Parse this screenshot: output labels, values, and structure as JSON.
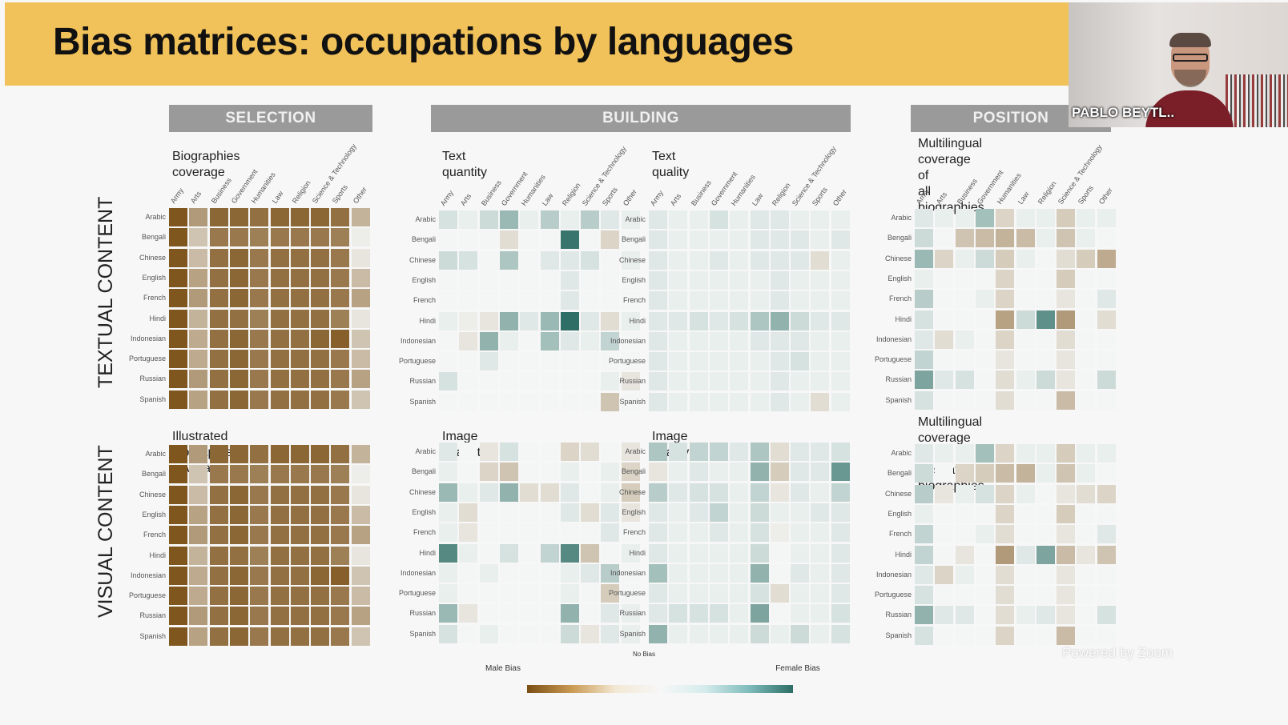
{
  "slide": {
    "title": "Bias matrices: occupations by languages",
    "sections": [
      "SELECTION",
      "BUILDING",
      "POSITION"
    ],
    "row_titles": [
      "TEXTUAL CONTENT",
      "VISUAL CONTENT"
    ],
    "colors": {
      "banner": "#f2c25a",
      "male_bias": "#7a4e14",
      "no_bias": "#f7f7f7",
      "female_bias": "#2e6e66",
      "header_gray": "#9a9a9a"
    }
  },
  "chart_data": {
    "type": "heatmap",
    "columns": [
      "Army",
      "Arts",
      "Business",
      "Government",
      "Humanities",
      "Law",
      "Religion",
      "Science & Technology",
      "Sports",
      "Other"
    ],
    "rows": [
      "Arabic",
      "Bengali",
      "Chinese",
      "English",
      "French",
      "Hindi",
      "Indonesian",
      "Portuguese",
      "Russian",
      "Spanish"
    ],
    "value_range": [
      -1,
      1
    ],
    "panels": [
      {
        "title": "Biographies coverage",
        "grid": [
          [
            -0.95,
            -0.55,
            -0.85,
            -0.85,
            -0.8,
            -0.85,
            -0.85,
            -0.85,
            -0.8,
            -0.4
          ],
          [
            -0.95,
            -0.3,
            -0.75,
            -0.75,
            -0.7,
            -0.75,
            -0.75,
            -0.75,
            -0.7,
            -0.05
          ],
          [
            -0.95,
            -0.35,
            -0.8,
            -0.85,
            -0.75,
            -0.8,
            -0.8,
            -0.8,
            -0.75,
            -0.1
          ],
          [
            -0.95,
            -0.5,
            -0.8,
            -0.85,
            -0.75,
            -0.8,
            -0.8,
            -0.8,
            -0.75,
            -0.35
          ],
          [
            -0.95,
            -0.55,
            -0.8,
            -0.85,
            -0.75,
            -0.8,
            -0.8,
            -0.8,
            -0.75,
            -0.5
          ],
          [
            -0.95,
            -0.4,
            -0.8,
            -0.8,
            -0.7,
            -0.8,
            -0.8,
            -0.8,
            -0.7,
            -0.1
          ],
          [
            -0.95,
            -0.45,
            -0.8,
            -0.85,
            -0.75,
            -0.8,
            -0.8,
            -0.85,
            -0.9,
            -0.3
          ],
          [
            -0.95,
            -0.45,
            -0.8,
            -0.85,
            -0.75,
            -0.8,
            -0.8,
            -0.8,
            -0.75,
            -0.35
          ],
          [
            -0.95,
            -0.55,
            -0.8,
            -0.85,
            -0.75,
            -0.8,
            -0.8,
            -0.8,
            -0.75,
            -0.5
          ],
          [
            -0.95,
            -0.5,
            -0.8,
            -0.85,
            -0.75,
            -0.8,
            -0.8,
            -0.8,
            -0.75,
            -0.3
          ]
        ]
      },
      {
        "title": "Text quantity",
        "grid": [
          [
            0.15,
            0.05,
            0.2,
            0.45,
            0.05,
            0.3,
            0.05,
            0.3,
            0.1,
            0.05
          ],
          [
            0.0,
            0.0,
            0.0,
            -0.15,
            0.0,
            0.0,
            0.95,
            0.0,
            -0.2,
            0.0
          ],
          [
            0.2,
            0.15,
            0.0,
            0.35,
            0.0,
            0.1,
            0.1,
            0.15,
            0.0,
            0.05
          ],
          [
            0.0,
            0.0,
            0.0,
            0.0,
            0.0,
            0.0,
            0.1,
            0.0,
            0.0,
            0.0
          ],
          [
            0.0,
            0.0,
            0.0,
            0.0,
            0.0,
            0.0,
            0.1,
            0.0,
            0.0,
            0.0
          ],
          [
            0.05,
            -0.05,
            -0.1,
            0.5,
            0.1,
            0.45,
            1.0,
            0.1,
            -0.15,
            0.05
          ],
          [
            0.0,
            -0.1,
            0.5,
            0.05,
            0.0,
            0.4,
            0.1,
            0.05,
            0.25,
            0.0
          ],
          [
            0.0,
            0.0,
            0.1,
            0.0,
            0.0,
            0.0,
            0.0,
            0.0,
            0.0,
            0.0
          ],
          [
            0.15,
            0.0,
            0.0,
            0.0,
            0.0,
            0.0,
            0.0,
            0.0,
            0.05,
            -0.1
          ],
          [
            0.0,
            0.0,
            0.0,
            0.0,
            0.0,
            0.0,
            0.0,
            0.0,
            -0.3,
            0.0
          ]
        ]
      },
      {
        "title": "Text quality",
        "grid": [
          [
            0.1,
            0.05,
            0.05,
            0.15,
            0.05,
            0.1,
            0.1,
            0.05,
            0.05,
            0.05
          ],
          [
            0.1,
            0.05,
            0.05,
            0.05,
            0.05,
            0.1,
            0.1,
            0.1,
            0.05,
            0.1
          ],
          [
            0.1,
            0.05,
            0.05,
            0.1,
            0.05,
            0.1,
            0.1,
            0.1,
            -0.15,
            0.05
          ],
          [
            0.1,
            0.05,
            0.05,
            0.05,
            0.05,
            0.05,
            0.1,
            0.05,
            0.05,
            0.05
          ],
          [
            0.1,
            0.05,
            0.05,
            0.05,
            0.05,
            0.05,
            0.1,
            0.05,
            0.05,
            0.05
          ],
          [
            0.1,
            0.1,
            0.15,
            0.1,
            0.15,
            0.35,
            0.5,
            0.2,
            0.1,
            0.1
          ],
          [
            0.1,
            0.05,
            0.05,
            0.05,
            0.05,
            0.1,
            0.1,
            0.1,
            0.05,
            0.05
          ],
          [
            0.1,
            0.05,
            0.05,
            0.05,
            0.05,
            0.05,
            0.1,
            0.15,
            0.05,
            0.05
          ],
          [
            0.1,
            0.05,
            0.05,
            0.05,
            0.05,
            0.05,
            0.1,
            0.05,
            0.05,
            0.05
          ],
          [
            0.1,
            0.05,
            0.05,
            0.05,
            0.05,
            0.05,
            0.1,
            0.05,
            -0.15,
            0.05
          ]
        ]
      },
      {
        "title": "Multilingual coverage of\nall biographies",
        "grid": [
          [
            0.1,
            0.05,
            0.05,
            0.4,
            -0.2,
            0.05,
            0.05,
            -0.25,
            0.05,
            0.05
          ],
          [
            0.2,
            0.0,
            -0.3,
            -0.35,
            -0.4,
            -0.35,
            0.05,
            -0.3,
            0.05,
            0.0
          ],
          [
            0.45,
            -0.2,
            0.05,
            0.2,
            -0.25,
            0.05,
            0.0,
            -0.15,
            -0.25,
            -0.45
          ],
          [
            0.05,
            0.0,
            0.0,
            0.0,
            -0.2,
            0.0,
            0.0,
            -0.25,
            0.0,
            0.0
          ],
          [
            0.3,
            0.0,
            0.0,
            0.05,
            -0.2,
            0.0,
            0.0,
            -0.1,
            0.0,
            0.1
          ],
          [
            0.15,
            0.0,
            0.0,
            0.0,
            -0.5,
            0.2,
            0.75,
            -0.55,
            0.0,
            -0.15
          ],
          [
            0.1,
            -0.15,
            0.05,
            0.0,
            -0.2,
            0.0,
            0.0,
            -0.15,
            0.0,
            0.0
          ],
          [
            0.25,
            0.0,
            0.0,
            0.0,
            -0.1,
            0.0,
            0.0,
            -0.1,
            0.0,
            0.0
          ],
          [
            0.6,
            0.1,
            0.15,
            0.0,
            -0.15,
            0.05,
            0.2,
            -0.1,
            0.0,
            0.2
          ],
          [
            0.15,
            0.0,
            0.0,
            0.0,
            -0.15,
            0.0,
            0.0,
            -0.35,
            0.0,
            0.0
          ]
        ]
      },
      {
        "title": "Illustrated biographies coverage",
        "grid": [
          [
            -0.95,
            -0.55,
            -0.85,
            -0.85,
            -0.8,
            -0.85,
            -0.85,
            -0.85,
            -0.8,
            -0.4
          ],
          [
            -0.95,
            -0.3,
            -0.75,
            -0.75,
            -0.7,
            -0.75,
            -0.75,
            -0.75,
            -0.7,
            -0.05
          ],
          [
            -0.95,
            -0.35,
            -0.8,
            -0.85,
            -0.75,
            -0.8,
            -0.8,
            -0.8,
            -0.75,
            -0.1
          ],
          [
            -0.95,
            -0.5,
            -0.8,
            -0.85,
            -0.75,
            -0.8,
            -0.8,
            -0.8,
            -0.75,
            -0.35
          ],
          [
            -0.95,
            -0.55,
            -0.8,
            -0.85,
            -0.75,
            -0.8,
            -0.8,
            -0.8,
            -0.75,
            -0.5
          ],
          [
            -0.95,
            -0.4,
            -0.8,
            -0.8,
            -0.7,
            -0.8,
            -0.8,
            -0.8,
            -0.7,
            -0.1
          ],
          [
            -0.95,
            -0.45,
            -0.8,
            -0.85,
            -0.75,
            -0.8,
            -0.8,
            -0.85,
            -0.9,
            -0.3
          ],
          [
            -0.95,
            -0.45,
            -0.8,
            -0.85,
            -0.75,
            -0.8,
            -0.8,
            -0.8,
            -0.75,
            -0.35
          ],
          [
            -0.95,
            -0.55,
            -0.8,
            -0.85,
            -0.75,
            -0.8,
            -0.8,
            -0.8,
            -0.75,
            -0.5
          ],
          [
            -0.95,
            -0.5,
            -0.8,
            -0.85,
            -0.75,
            -0.8,
            -0.8,
            -0.8,
            -0.75,
            -0.3
          ]
        ]
      },
      {
        "title": "Image quantity",
        "grid": [
          [
            0.1,
            0.0,
            -0.1,
            0.15,
            0.0,
            0.0,
            -0.2,
            -0.15,
            0.0,
            -0.1
          ],
          [
            0.05,
            0.0,
            -0.2,
            -0.3,
            0.0,
            0.0,
            0.05,
            0.0,
            0.05,
            -0.2
          ],
          [
            0.45,
            0.05,
            0.1,
            0.5,
            -0.15,
            -0.15,
            0.1,
            0.0,
            0.05,
            -0.25
          ],
          [
            0.05,
            -0.15,
            0.0,
            0.0,
            0.0,
            0.0,
            0.1,
            -0.15,
            0.1,
            -0.1
          ],
          [
            0.05,
            -0.1,
            0.0,
            0.0,
            0.0,
            0.0,
            0.0,
            0.0,
            0.1,
            0.0
          ],
          [
            0.8,
            0.05,
            0.0,
            0.15,
            0.0,
            0.25,
            0.8,
            -0.3,
            0.0,
            0.05
          ],
          [
            0.05,
            0.0,
            0.05,
            0.0,
            0.0,
            0.0,
            0.05,
            0.1,
            0.3,
            0.0
          ],
          [
            0.05,
            0.0,
            0.0,
            0.0,
            0.0,
            0.0,
            0.05,
            0.0,
            -0.25,
            0.0
          ],
          [
            0.45,
            -0.1,
            0.0,
            0.0,
            0.0,
            0.0,
            0.5,
            0.0,
            0.1,
            0.05
          ],
          [
            0.15,
            0.0,
            0.05,
            0.0,
            0.0,
            0.0,
            0.2,
            -0.1,
            0.1,
            0.05
          ]
        ]
      },
      {
        "title": "Image quality",
        "grid": [
          [
            0.35,
            0.15,
            0.25,
            0.25,
            0.1,
            0.35,
            -0.15,
            0.1,
            0.1,
            0.15
          ],
          [
            -0.1,
            0.05,
            0.1,
            0.05,
            0.05,
            0.5,
            -0.25,
            0.1,
            0.1,
            0.7
          ],
          [
            0.3,
            0.1,
            0.15,
            0.15,
            0.05,
            0.25,
            -0.1,
            0.1,
            0.05,
            0.25
          ],
          [
            0.1,
            0.05,
            0.1,
            0.25,
            0.05,
            0.2,
            0.05,
            0.05,
            0.1,
            0.1
          ],
          [
            0.1,
            0.05,
            0.05,
            0.1,
            0.05,
            0.15,
            -0.05,
            0.05,
            0.05,
            0.1
          ],
          [
            0.1,
            0.05,
            0.05,
            0.05,
            0.05,
            0.2,
            0.0,
            0.05,
            0.05,
            0.1
          ],
          [
            0.4,
            0.05,
            0.05,
            0.05,
            0.05,
            0.5,
            0.0,
            0.1,
            0.05,
            0.1
          ],
          [
            0.1,
            0.05,
            0.05,
            0.05,
            0.05,
            0.15,
            -0.15,
            0.05,
            0.05,
            0.1
          ],
          [
            0.1,
            0.15,
            0.15,
            0.15,
            0.05,
            0.6,
            0.0,
            0.05,
            0.05,
            0.15
          ],
          [
            0.5,
            0.05,
            0.05,
            0.05,
            0.05,
            0.2,
            0.05,
            0.2,
            0.05,
            0.15
          ]
        ]
      },
      {
        "title": "Multilingual coverage of\nillustrated biographies",
        "grid": [
          [
            0.1,
            0.05,
            0.05,
            0.4,
            -0.2,
            0.05,
            0.05,
            -0.25,
            0.05,
            0.05
          ],
          [
            0.2,
            0.0,
            -0.2,
            -0.25,
            -0.35,
            -0.4,
            0.05,
            -0.3,
            0.05,
            0.0
          ],
          [
            0.3,
            -0.1,
            0.05,
            0.15,
            -0.2,
            0.05,
            0.0,
            -0.1,
            -0.15,
            -0.2
          ],
          [
            0.05,
            0.0,
            0.0,
            0.0,
            -0.2,
            0.0,
            0.0,
            -0.25,
            0.0,
            0.0
          ],
          [
            0.25,
            0.0,
            0.0,
            0.05,
            -0.15,
            0.0,
            0.0,
            -0.1,
            0.0,
            0.1
          ],
          [
            0.25,
            0.0,
            -0.1,
            0.0,
            -0.55,
            0.1,
            0.6,
            -0.35,
            -0.1,
            -0.3
          ],
          [
            0.1,
            -0.2,
            0.05,
            0.0,
            -0.15,
            0.0,
            0.0,
            -0.1,
            0.0,
            0.0
          ],
          [
            0.15,
            0.0,
            0.0,
            0.0,
            -0.15,
            0.0,
            0.0,
            -0.1,
            0.0,
            0.0
          ],
          [
            0.5,
            0.1,
            0.1,
            0.0,
            -0.15,
            0.05,
            0.1,
            -0.1,
            0.0,
            0.15
          ],
          [
            0.15,
            0.0,
            0.0,
            0.0,
            -0.2,
            0.0,
            0.0,
            -0.35,
            0.0,
            0.0
          ]
        ]
      }
    ],
    "legend": {
      "low_label": "Male\nBias",
      "mid_label": "No\nBias",
      "high_label": "Female\nBias"
    }
  },
  "video": {
    "participant_name": "PABLO BEYTL..",
    "watermark": "Powered by Zoom"
  }
}
